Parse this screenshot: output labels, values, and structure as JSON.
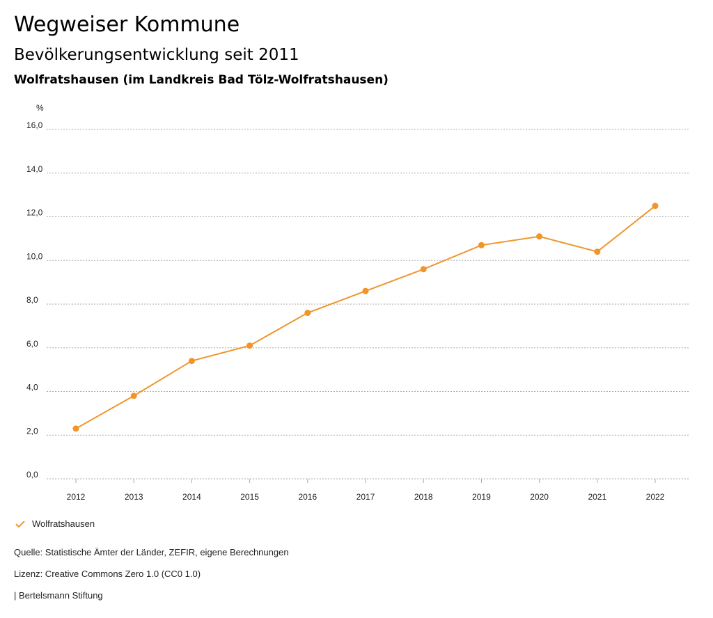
{
  "header": {
    "title": "Wegweiser Kommune",
    "subtitle": "Bevölkerungsentwicklung seit 2011",
    "region": "Wolfratshausen (im Landkreis Bad Tölz-Wolfratshausen)"
  },
  "chart_data": {
    "type": "line",
    "title": "Bevölkerungsentwicklung seit 2011",
    "ylabel": "%",
    "xlabel": "",
    "ylim": [
      0,
      16
    ],
    "yticks": [
      "0,0",
      "2,0",
      "4,0",
      "6,0",
      "8,0",
      "10,0",
      "12,0",
      "14,0",
      "16,0"
    ],
    "ytick_values": [
      0,
      2,
      4,
      6,
      8,
      10,
      12,
      14,
      16
    ],
    "categories": [
      "2012",
      "2013",
      "2014",
      "2015",
      "2016",
      "2017",
      "2018",
      "2019",
      "2020",
      "2021",
      "2022"
    ],
    "series": [
      {
        "name": "Wolfratshausen",
        "color": "#f0952a",
        "values": [
          2.3,
          3.8,
          5.4,
          6.1,
          7.6,
          8.6,
          9.6,
          10.7,
          11.1,
          10.4,
          12.5
        ]
      }
    ],
    "grid": true,
    "legend": "bottom-left"
  },
  "footer": {
    "source": "Quelle: Statistische Ämter der Länder, ZEFIR, eigene Berechnungen",
    "license": "Lizenz: Creative Commons Zero 1.0 (CC0 1.0)",
    "publisher": "| Bertelsmann Stiftung"
  }
}
